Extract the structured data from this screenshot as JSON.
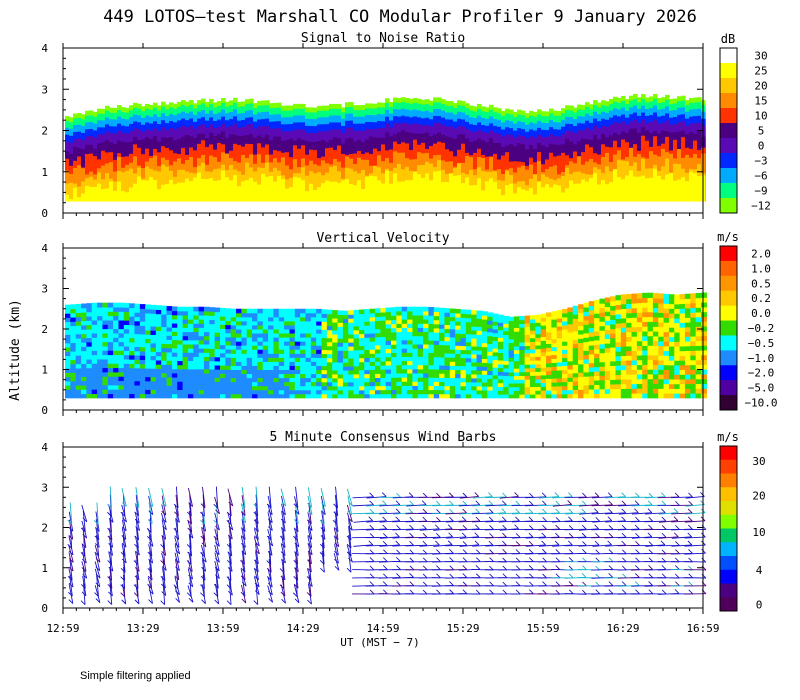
{
  "page": {
    "title": "449 LOTOS—test Marshall CO Modular Profiler  9 January 2026",
    "ylabel": "Altitude (km)",
    "xlabel": "UT  (MST − 7)",
    "footnote": "Simple filtering applied"
  },
  "chart_data": [
    {
      "type": "heatmap",
      "title": "Signal to Noise Ratio",
      "unit": "dB",
      "x_ticks": [
        "12:59",
        "13:29",
        "13:59",
        "14:29",
        "14:59",
        "15:29",
        "15:59",
        "16:29",
        "16:59"
      ],
      "xlim_hours": [
        12.983,
        16.983
      ],
      "ylim_km": [
        0,
        4
      ],
      "y_ticks": [
        "0",
        "1",
        "2",
        "3",
        "4"
      ],
      "colorbar": {
        "labels": [
          "30",
          "25",
          "20",
          "15",
          "10",
          "5",
          "0",
          "−3",
          "−6",
          "−9",
          "−12"
        ],
        "colors": [
          "#ffffff",
          "#ffff00",
          "#ffc800",
          "#ff8c00",
          "#ff3300",
          "#4b0082",
          "#5a0ab4",
          "#0028ff",
          "#00aaff",
          "#00ff7f",
          "#7fff00"
        ]
      },
      "top_of_data_km": [
        2.35,
        2.5,
        2.6,
        2.65,
        2.7,
        2.72,
        2.75,
        2.7,
        2.65,
        2.6,
        2.62,
        2.7,
        2.75,
        2.78,
        2.72,
        2.6,
        2.5,
        2.45,
        2.55,
        2.7,
        2.8,
        2.85,
        2.8,
        2.75
      ],
      "levels": [
        "white",
        "yellow",
        "orange",
        "dark orange",
        "red",
        "purple",
        "blue",
        "light blue",
        "green"
      ]
    },
    {
      "type": "heatmap",
      "title": "Vertical Velocity",
      "unit": "m/s",
      "x_ticks": [
        "12:59",
        "13:29",
        "13:59",
        "14:29",
        "14:59",
        "15:29",
        "15:59",
        "16:29",
        "16:59"
      ],
      "xlim_hours": [
        12.983,
        16.983
      ],
      "ylim_km": [
        0,
        4
      ],
      "y_ticks": [
        "0",
        "1",
        "2",
        "3",
        "4"
      ],
      "colorbar": {
        "labels": [
          "2.0",
          "1.0",
          "0.5",
          "0.2",
          "0.0",
          "−0.2",
          "−0.5",
          "−1.0",
          "−2.0",
          "−5.0",
          "−10.0"
        ],
        "colors": [
          "#ff0000",
          "#ff6400",
          "#ff9600",
          "#ffc800",
          "#ffff00",
          "#32dc00",
          "#00ffff",
          "#1e8cff",
          "#0000ff",
          "#5000a0",
          "#320032"
        ]
      },
      "top_of_data_km": [
        2.6,
        2.65,
        2.65,
        2.6,
        2.55,
        2.55,
        2.5,
        2.5,
        2.5,
        2.5,
        2.45,
        2.5,
        2.55,
        2.55,
        2.5,
        2.45,
        2.3,
        2.35,
        2.5,
        2.7,
        2.85,
        2.9,
        2.85,
        2.9
      ],
      "dominant_by_period": [
        "−0.5 (13:00–14:30)",
        "−0.5 to −0.2 (14:30–15:45)",
        "0.0 to 0.5 (15:45–16:59)"
      ]
    },
    {
      "type": "wind_barbs",
      "title": "5 Minute Consensus Wind Barbs",
      "unit": "m/s",
      "x_ticks": [
        "12:59",
        "13:29",
        "13:59",
        "14:29",
        "14:59",
        "15:29",
        "15:59",
        "16:29",
        "16:59"
      ],
      "xlim_hours": [
        12.983,
        16.983
      ],
      "ylim_km": [
        0,
        4
      ],
      "y_ticks": [
        "0",
        "1",
        "2",
        "3",
        "4"
      ],
      "colorbar": {
        "labels": [
          "30",
          "20",
          "10",
          "4",
          "0"
        ],
        "bands": [
          "#ff0000",
          "#ff4000",
          "#ff8000",
          "#ffc000",
          "#e0e000",
          "#80ff00",
          "#00c864",
          "#00b4ff",
          "#0050ff",
          "#0000ff",
          "#4b0082",
          "#50005a"
        ]
      },
      "time_columns": 48,
      "heights_km": [
        0.35,
        0.55,
        0.75,
        0.95,
        1.15,
        1.35,
        1.55,
        1.75,
        1.95,
        2.15,
        2.35,
        2.55,
        2.75
      ],
      "prevailing_speed_ms": "0–4",
      "upper_level_speed_ms": "4–10"
    }
  ]
}
